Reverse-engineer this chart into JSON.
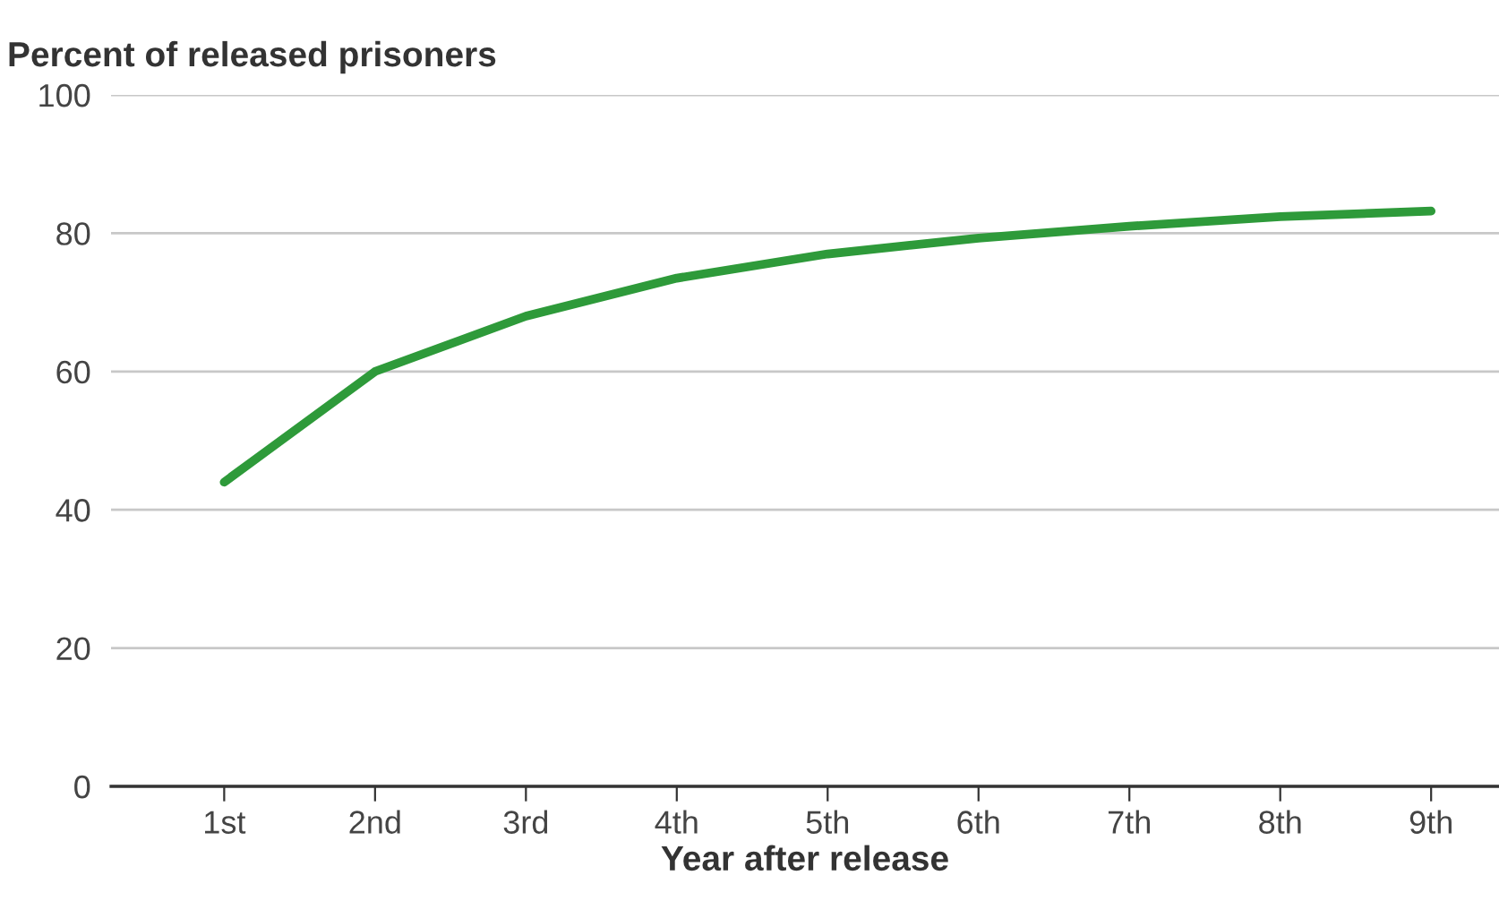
{
  "chart_data": {
    "type": "line",
    "ylabel": "Percent of released prisoners",
    "xlabel": "Year after release",
    "categories": [
      "1st",
      "2nd",
      "3rd",
      "4th",
      "5th",
      "6th",
      "7th",
      "8th",
      "9th"
    ],
    "series": [
      {
        "color": "#2e9a3a",
        "values": [
          44,
          60,
          68,
          73.5,
          77,
          79.3,
          81,
          82.4,
          83.2
        ]
      }
    ],
    "ylim": [
      0,
      100
    ],
    "yticks": [
      0,
      20,
      40,
      60,
      80,
      100
    ],
    "grid": "y",
    "line_style": "solid"
  }
}
